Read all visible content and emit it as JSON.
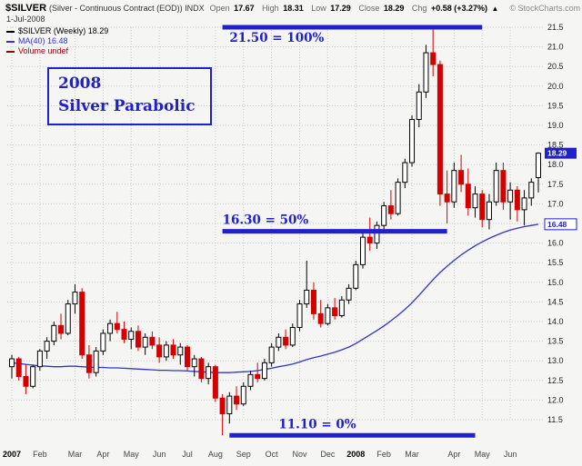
{
  "header": {
    "symbol": "$SILVER",
    "title_rest": "(Silver - Continuous Contract (EOD)) INDX",
    "date": "1-Jul-2008",
    "copyright": "© StockCharts.com",
    "quote": {
      "open_label": "Open",
      "open": "17.67",
      "high_label": "High",
      "high": "18.31",
      "low_label": "Low",
      "low": "17.29",
      "close_label": "Close",
      "close": "18.29",
      "chg_label": "Chg",
      "chg": "+0.58 (+3.27%)",
      "chg_dir": "▲"
    }
  },
  "legend": {
    "items": [
      {
        "label": "$SILVER (Weekly) 18.29",
        "color": "#000000"
      },
      {
        "label": "MA(40) 16.48",
        "color": "#3333cc"
      },
      {
        "label": "Volume undef",
        "color": "#990000"
      }
    ]
  },
  "annotations": {
    "accent": "#2020cc",
    "box_line1": "2008",
    "box_line2": "Silver Parabolic",
    "lines": [
      {
        "label": "21.50 = 100%",
        "value": 21.5,
        "i1": 30,
        "i2": 67,
        "label_i": 31,
        "above": false
      },
      {
        "label": "16.30 = 50%",
        "value": 16.3,
        "i1": 30,
        "i2": 62,
        "label_i": 30,
        "above": true
      },
      {
        "label": "11.10 = 0%",
        "value": 11.1,
        "i1": 31,
        "i2": 66,
        "label_i": 38,
        "above": true
      }
    ]
  },
  "axis": {
    "y_min": 11.5,
    "y_max": 21.5,
    "y_step": 0.5,
    "price_tag": "18.29",
    "ma_tag": "16.48",
    "x_labels": [
      {
        "label": "2007",
        "index": 0,
        "bold": true
      },
      {
        "label": "Feb",
        "index": 4,
        "bold": false
      },
      {
        "label": "Mar",
        "index": 9,
        "bold": false
      },
      {
        "label": "Apr",
        "index": 13,
        "bold": false
      },
      {
        "label": "May",
        "index": 17,
        "bold": false
      },
      {
        "label": "Jun",
        "index": 21,
        "bold": false
      },
      {
        "label": "Jul",
        "index": 25,
        "bold": false
      },
      {
        "label": "Aug",
        "index": 29,
        "bold": false
      },
      {
        "label": "Sep",
        "index": 33,
        "bold": false
      },
      {
        "label": "Oct",
        "index": 37,
        "bold": false
      },
      {
        "label": "Nov",
        "index": 41,
        "bold": false
      },
      {
        "label": "Dec",
        "index": 45,
        "bold": false
      },
      {
        "label": "2008",
        "index": 49,
        "bold": true
      },
      {
        "label": "Feb",
        "index": 53,
        "bold": false
      },
      {
        "label": "Mar",
        "index": 57,
        "bold": false
      },
      {
        "label": "Apr",
        "index": 63,
        "bold": false
      },
      {
        "label": "May",
        "index": 67,
        "bold": false
      },
      {
        "label": "Jun",
        "index": 71,
        "bold": false
      }
    ]
  },
  "chart_data": {
    "type": "candlestick",
    "interval": "weekly",
    "title": "$SILVER (Silver - Continuous Contract (EOD)) INDX",
    "ylim": [
      11.5,
      21.5
    ],
    "up_color": "#ffffff",
    "up_outline": "#000000",
    "down_color": "#d40000",
    "ma_color": "#3333cc",
    "grid_color": "#c9c9c9",
    "candles": [
      [
        12.85,
        13.15,
        12.55,
        13.05
      ],
      [
        13.05,
        13.1,
        12.5,
        12.6
      ],
      [
        12.6,
        12.9,
        12.15,
        12.35
      ],
      [
        12.35,
        12.9,
        12.3,
        12.85
      ],
      [
        12.85,
        13.3,
        12.75,
        13.25
      ],
      [
        13.25,
        13.6,
        13.05,
        13.5
      ],
      [
        13.5,
        14.0,
        13.4,
        13.9
      ],
      [
        13.9,
        14.2,
        13.55,
        13.7
      ],
      [
        13.7,
        14.55,
        13.65,
        14.45
      ],
      [
        14.45,
        14.95,
        14.2,
        14.75
      ],
      [
        14.75,
        14.85,
        13.05,
        13.15
      ],
      [
        13.15,
        13.4,
        12.55,
        12.7
      ],
      [
        12.7,
        13.35,
        12.6,
        13.25
      ],
      [
        13.25,
        13.8,
        13.15,
        13.7
      ],
      [
        13.7,
        14.05,
        13.5,
        13.95
      ],
      [
        13.95,
        14.25,
        13.7,
        13.8
      ],
      [
        13.8,
        14.0,
        13.45,
        13.55
      ],
      [
        13.55,
        13.85,
        13.3,
        13.75
      ],
      [
        13.75,
        13.9,
        13.25,
        13.35
      ],
      [
        13.35,
        13.7,
        13.15,
        13.6
      ],
      [
        13.6,
        13.75,
        13.3,
        13.4
      ],
      [
        13.4,
        13.6,
        12.95,
        13.1
      ],
      [
        13.1,
        13.5,
        13.0,
        13.4
      ],
      [
        13.4,
        13.55,
        13.05,
        13.15
      ],
      [
        13.15,
        13.45,
        12.9,
        13.35
      ],
      [
        13.35,
        13.4,
        12.75,
        12.85
      ],
      [
        12.85,
        13.15,
        12.6,
        13.05
      ],
      [
        13.05,
        13.1,
        12.45,
        12.55
      ],
      [
        12.55,
        12.95,
        12.4,
        12.85
      ],
      [
        12.85,
        12.9,
        11.95,
        12.05
      ],
      [
        12.05,
        12.15,
        11.1,
        11.65
      ],
      [
        11.65,
        12.2,
        11.4,
        12.1
      ],
      [
        12.1,
        12.35,
        11.75,
        11.9
      ],
      [
        11.9,
        12.45,
        11.85,
        12.35
      ],
      [
        12.35,
        12.75,
        12.25,
        12.65
      ],
      [
        12.65,
        12.95,
        12.45,
        12.55
      ],
      [
        12.55,
        13.05,
        12.5,
        12.95
      ],
      [
        12.95,
        13.45,
        12.85,
        13.35
      ],
      [
        13.35,
        13.7,
        13.25,
        13.6
      ],
      [
        13.6,
        13.8,
        13.3,
        13.4
      ],
      [
        13.4,
        13.95,
        13.35,
        13.85
      ],
      [
        13.85,
        14.55,
        13.75,
        14.45
      ],
      [
        14.45,
        15.55,
        14.35,
        14.8
      ],
      [
        14.8,
        15.0,
        14.05,
        14.2
      ],
      [
        14.2,
        14.55,
        13.85,
        13.95
      ],
      [
        13.95,
        14.45,
        13.9,
        14.35
      ],
      [
        14.35,
        14.6,
        14.05,
        14.15
      ],
      [
        14.15,
        14.65,
        14.1,
        14.55
      ],
      [
        14.55,
        14.95,
        14.45,
        14.85
      ],
      [
        14.85,
        15.55,
        14.8,
        15.45
      ],
      [
        15.45,
        16.25,
        15.35,
        16.15
      ],
      [
        16.15,
        16.65,
        15.8,
        16.0
      ],
      [
        16.0,
        16.55,
        15.85,
        16.45
      ],
      [
        16.45,
        17.05,
        16.3,
        16.95
      ],
      [
        16.95,
        17.35,
        16.6,
        16.75
      ],
      [
        16.75,
        17.65,
        16.7,
        17.55
      ],
      [
        17.55,
        18.15,
        17.4,
        18.05
      ],
      [
        18.05,
        19.25,
        17.95,
        19.15
      ],
      [
        19.15,
        20.05,
        18.95,
        19.85
      ],
      [
        19.85,
        21.05,
        19.7,
        20.85
      ],
      [
        20.85,
        21.44,
        20.25,
        20.55
      ],
      [
        20.55,
        20.65,
        16.95,
        17.25
      ],
      [
        17.25,
        17.85,
        16.5,
        17.05
      ],
      [
        17.05,
        18.05,
        16.9,
        17.85
      ],
      [
        17.85,
        18.25,
        17.3,
        17.5
      ],
      [
        17.5,
        17.9,
        16.7,
        16.9
      ],
      [
        16.9,
        17.45,
        16.65,
        17.25
      ],
      [
        17.25,
        17.35,
        16.4,
        16.6
      ],
      [
        16.6,
        17.25,
        16.35,
        17.05
      ],
      [
        17.05,
        18.05,
        16.95,
        17.85
      ],
      [
        17.85,
        18.05,
        16.85,
        17.05
      ],
      [
        17.05,
        17.55,
        16.6,
        17.35
      ],
      [
        17.35,
        17.45,
        16.55,
        16.85
      ],
      [
        16.85,
        17.35,
        16.45,
        17.15
      ],
      [
        17.15,
        17.65,
        16.95,
        17.55
      ],
      [
        17.67,
        18.31,
        17.29,
        18.29
      ]
    ],
    "ma40": [
      12.95,
      12.93,
      12.91,
      12.89,
      12.87,
      12.86,
      12.85,
      12.85,
      12.86,
      12.86,
      12.85,
      12.84,
      12.83,
      12.83,
      12.82,
      12.82,
      12.81,
      12.8,
      12.79,
      12.78,
      12.77,
      12.76,
      12.76,
      12.75,
      12.75,
      12.74,
      12.73,
      12.72,
      12.71,
      12.7,
      12.7,
      12.7,
      12.71,
      12.72,
      12.73,
      12.75,
      12.78,
      12.81,
      12.85,
      12.88,
      12.92,
      12.97,
      13.03,
      13.08,
      13.12,
      13.17,
      13.22,
      13.28,
      13.35,
      13.44,
      13.55,
      13.66,
      13.77,
      13.89,
      14.02,
      14.16,
      14.31,
      14.48,
      14.67,
      14.87,
      15.07,
      15.25,
      15.41,
      15.56,
      15.7,
      15.82,
      15.93,
      16.03,
      16.12,
      16.2,
      16.27,
      16.33,
      16.38,
      16.42,
      16.45,
      16.48
    ]
  }
}
